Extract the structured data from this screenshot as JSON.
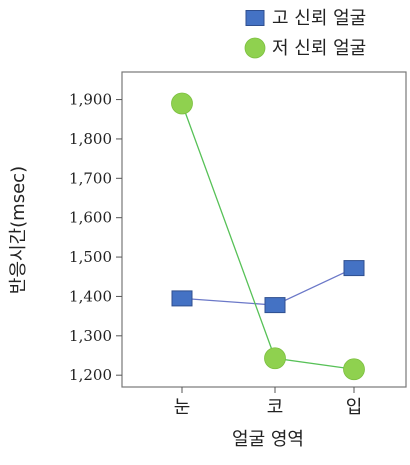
{
  "chart_data": {
    "type": "line",
    "categories": [
      "눈",
      "코",
      "입"
    ],
    "series": [
      {
        "name": "고 신뢰 얼굴",
        "values": [
          1395,
          1378,
          1472
        ],
        "color": "#4472c4",
        "line_color": "#6b78c8",
        "marker": "square"
      },
      {
        "name": "저 신뢰 얼굴",
        "values": [
          1890,
          1243,
          1215
        ],
        "color": "#8fd14f",
        "line_color": "#57c157",
        "marker": "circle"
      }
    ],
    "xlabel": "얼굴 영역",
    "ylabel": "반응시간(msec)",
    "ylim": [
      1170,
      1970
    ],
    "yticks": [
      1200,
      1300,
      1400,
      1500,
      1600,
      1700,
      1800,
      1900
    ],
    "ytick_labels": [
      "1,200",
      "1,300",
      "1,400",
      "1,500",
      "1,600",
      "1,700",
      "1,800",
      "1,900"
    ],
    "grid": false,
    "legend_position": "top-right"
  }
}
